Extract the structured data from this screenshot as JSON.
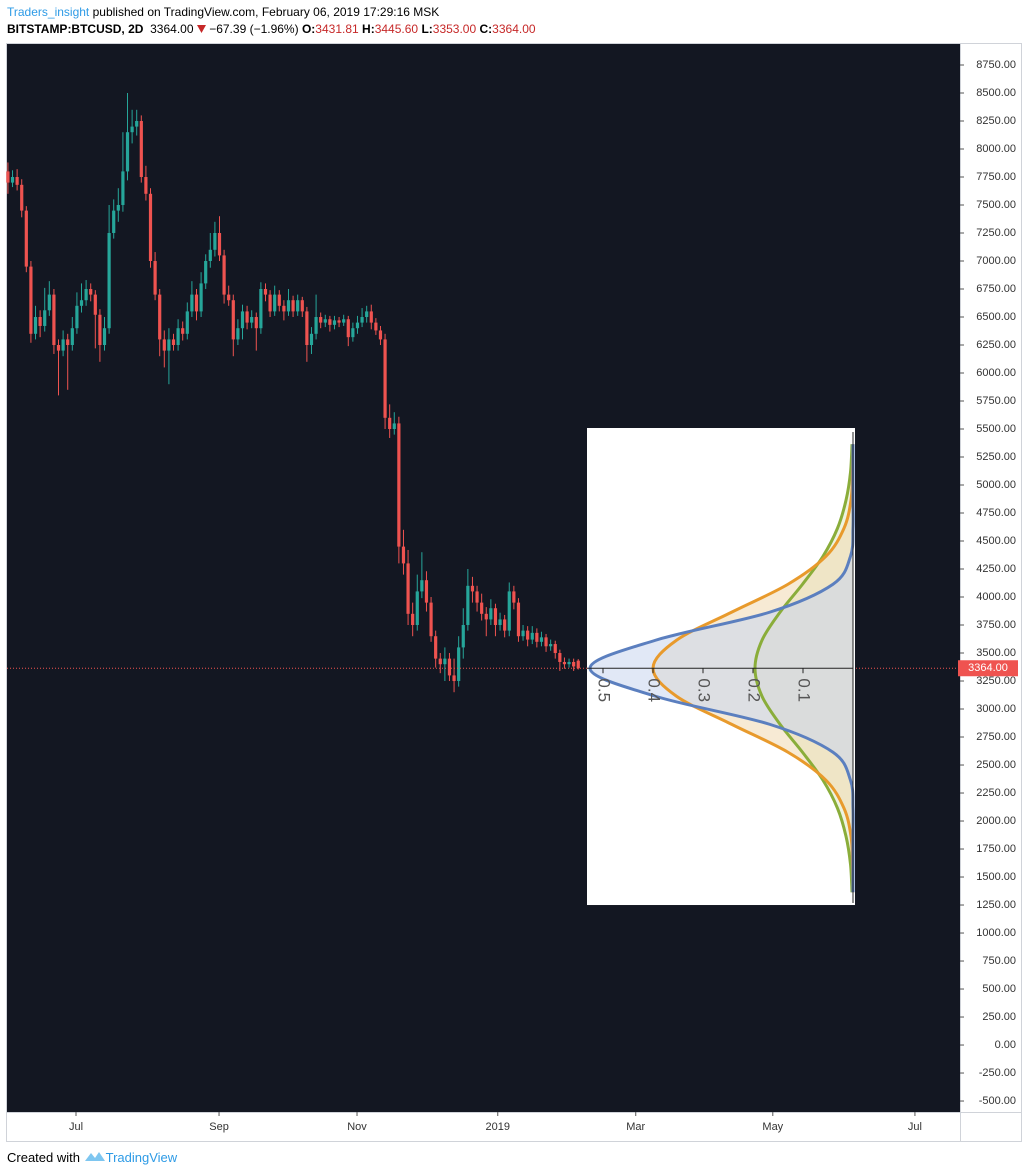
{
  "header": {
    "author": "Traders_insight",
    "published": "published on TradingView.com, February 06, 2019 17:29:16 MSK",
    "symbol": "BITSTAMP:BTCUSD, 2D",
    "last": "3364.00",
    "change": "−67.39 (−1.96%)",
    "open_label": "O:",
    "open": "3431.81",
    "high_label": "H:",
    "high": "3445.60",
    "low_label": "L:",
    "low": "3353.00",
    "close_label": "C:",
    "close": "3364.00"
  },
  "footer": {
    "created": "Created with",
    "brand": "TradingView"
  },
  "chart_data": [
    {
      "type": "candlestick",
      "up_color": "#26a69a",
      "down_color": "#ef5350",
      "xlim": [
        -0.2,
        207
      ],
      "ylim": [
        -598,
        8937.5
      ],
      "xticks": [
        {
          "value": 14.8,
          "label": "Jul"
        },
        {
          "value": 45.9,
          "label": "Sep"
        },
        {
          "value": 75.9,
          "label": "Nov"
        },
        {
          "value": 106.5,
          "label": "2019"
        },
        {
          "value": 136.5,
          "label": "Mar"
        },
        {
          "value": 166.3,
          "label": "May"
        },
        {
          "value": 197.2,
          "label": "Jul"
        }
      ],
      "yticks": [
        {
          "value": 8750,
          "label": "8750.00"
        },
        {
          "value": 8500,
          "label": "8500.00"
        },
        {
          "value": 8250,
          "label": "8250.00"
        },
        {
          "value": 8000,
          "label": "8000.00"
        },
        {
          "value": 7750,
          "label": "7750.00"
        },
        {
          "value": 7500,
          "label": "7500.00"
        },
        {
          "value": 7250,
          "label": "7250.00"
        },
        {
          "value": 7000,
          "label": "7000.00"
        },
        {
          "value": 6750,
          "label": "6750.00"
        },
        {
          "value": 6500,
          "label": "6500.00"
        },
        {
          "value": 6250,
          "label": "6250.00"
        },
        {
          "value": 6000,
          "label": "6000.00"
        },
        {
          "value": 5750,
          "label": "5750.00"
        },
        {
          "value": 5500,
          "label": "5500.00"
        },
        {
          "value": 5250,
          "label": "5250.00"
        },
        {
          "value": 5000,
          "label": "5000.00"
        },
        {
          "value": 4750,
          "label": "4750.00"
        },
        {
          "value": 4500,
          "label": "4500.00"
        },
        {
          "value": 4250,
          "label": "4250.00"
        },
        {
          "value": 4000,
          "label": "4000.00"
        },
        {
          "value": 3750,
          "label": "3750.00"
        },
        {
          "value": 3500,
          "label": "3500.00"
        },
        {
          "value": 3250,
          "label": "3250.00"
        },
        {
          "value": 3000,
          "label": "3000.00"
        },
        {
          "value": 2750,
          "label": "2750.00"
        },
        {
          "value": 2500,
          "label": "2500.00"
        },
        {
          "value": 2250,
          "label": "2250.00"
        },
        {
          "value": 2000,
          "label": "2000.00"
        },
        {
          "value": 1750,
          "label": "1750.00"
        },
        {
          "value": 1500,
          "label": "1500.00"
        },
        {
          "value": 1250,
          "label": "1250.00"
        },
        {
          "value": 1000,
          "label": "1000.00"
        },
        {
          "value": 750,
          "label": "750.00"
        },
        {
          "value": 500,
          "label": "500.00"
        },
        {
          "value": 250,
          "label": "250.00"
        },
        {
          "value": 0,
          "label": "0.00"
        },
        {
          "value": -250,
          "label": "-250.00"
        },
        {
          "value": -500,
          "label": "-500.00"
        }
      ],
      "last_price": {
        "value": 3364,
        "label": "3364.00"
      },
      "open": [
        7800,
        7700,
        7750,
        7680,
        7450,
        6950,
        6350,
        6500,
        6420,
        6560,
        6700,
        6250,
        6200,
        6300,
        6250,
        6400,
        6600,
        6650,
        6750,
        6700,
        6520,
        6250,
        6400,
        7250,
        7450,
        7500,
        7800,
        8150,
        8200,
        8250,
        7750,
        7600,
        7000,
        6700,
        6300,
        6200,
        6300,
        6250,
        6400,
        6350,
        6550,
        6700,
        6550,
        6800,
        7000,
        7100,
        7250,
        7050,
        6700,
        6650,
        6300,
        6400,
        6550,
        6450,
        6500,
        6400,
        6750,
        6700,
        6550,
        6700,
        6600,
        6550,
        6650,
        6550,
        6650,
        6550,
        6250,
        6350,
        6500,
        6450,
        6480,
        6430,
        6470,
        6450,
        6480,
        6320,
        6400,
        6450,
        6500,
        6550,
        6450,
        6380,
        6300,
        5600,
        5500,
        5550,
        4450,
        4300,
        3850,
        3750,
        4050,
        4150,
        3950,
        3650,
        3450,
        3400,
        3450,
        3300,
        3250,
        3550,
        3750,
        4100,
        4050,
        3950,
        3850,
        3800,
        3900,
        3750,
        3800,
        3700,
        4050,
        3950,
        3650,
        3700,
        3620,
        3680,
        3600,
        3640,
        3560,
        3580,
        3500,
        3420,
        3400,
        3420,
        3431.81
      ],
      "high": [
        7880,
        7810,
        7820,
        7730,
        7490,
        7000,
        6600,
        6560,
        6760,
        6820,
        6750,
        6300,
        6380,
        6350,
        6500,
        6720,
        6800,
        6830,
        6800,
        6740,
        6570,
        6500,
        7500,
        7550,
        7650,
        8150,
        8500,
        8350,
        8350,
        8300,
        7850,
        7650,
        7080,
        6750,
        6380,
        6400,
        6350,
        6480,
        6460,
        6630,
        6820,
        6750,
        6900,
        7060,
        7250,
        7350,
        7400,
        7100,
        6780,
        6700,
        6480,
        6610,
        6600,
        6560,
        6540,
        6810,
        6800,
        6740,
        6780,
        6740,
        6650,
        6750,
        6690,
        6700,
        6680,
        6590,
        6410,
        6700,
        6540,
        6520,
        6510,
        6510,
        6500,
        6520,
        6510,
        6450,
        6510,
        6580,
        6600,
        6610,
        6490,
        6420,
        6350,
        5720,
        5650,
        5610,
        4600,
        4420,
        3950,
        4200,
        4400,
        4230,
        4000,
        3700,
        3500,
        3550,
        3500,
        3450,
        3650,
        3900,
        4250,
        4180,
        4100,
        4030,
        3910,
        3980,
        3940,
        3860,
        3840,
        4130,
        4100,
        3990,
        3750,
        3740,
        3740,
        3720,
        3690,
        3670,
        3620,
        3610,
        3530,
        3460,
        3450,
        3450,
        3445.6
      ],
      "low": [
        7600,
        7660,
        7630,
        7390,
        6900,
        6270,
        6300,
        6320,
        6370,
        6510,
        6170,
        5800,
        6150,
        5850,
        6200,
        6350,
        6540,
        6600,
        6640,
        6220,
        6100,
        6200,
        6350,
        7200,
        7350,
        7440,
        7720,
        8050,
        8120,
        7700,
        7540,
        6940,
        6650,
        6150,
        6050,
        5900,
        6200,
        6200,
        6290,
        6300,
        6500,
        6470,
        6500,
        6750,
        6940,
        7040,
        7000,
        6620,
        6600,
        6150,
        6250,
        6300,
        6390,
        6400,
        6200,
        6350,
        6640,
        6500,
        6510,
        6550,
        6470,
        6510,
        6500,
        6510,
        6500,
        6100,
        6170,
        6300,
        6400,
        6410,
        6370,
        6390,
        6410,
        6420,
        6240,
        6280,
        6350,
        6410,
        6450,
        6390,
        6340,
        6250,
        5500,
        5420,
        5450,
        4300,
        4200,
        3750,
        3650,
        3700,
        3990,
        3870,
        3600,
        3370,
        3320,
        3250,
        3250,
        3150,
        3200,
        3450,
        3700,
        3950,
        3870,
        3790,
        3650,
        3750,
        3650,
        3700,
        3640,
        3650,
        3890,
        3600,
        3610,
        3560,
        3580,
        3550,
        3560,
        3510,
        3520,
        3450,
        3340,
        3360,
        3370,
        3340,
        3353
      ],
      "close": [
        7700,
        7750,
        7680,
        7450,
        6950,
        6350,
        6500,
        6420,
        6560,
        6700,
        6250,
        6200,
        6300,
        6250,
        6400,
        6600,
        6650,
        6750,
        6700,
        6520,
        6250,
        6400,
        7250,
        7450,
        7500,
        7800,
        8150,
        8200,
        8250,
        7750,
        7600,
        7000,
        6700,
        6300,
        6200,
        6300,
        6250,
        6400,
        6350,
        6550,
        6700,
        6550,
        6800,
        7000,
        7100,
        7250,
        7050,
        6700,
        6650,
        6300,
        6400,
        6550,
        6450,
        6500,
        6400,
        6750,
        6700,
        6550,
        6700,
        6600,
        6550,
        6650,
        6550,
        6650,
        6550,
        6250,
        6350,
        6500,
        6450,
        6480,
        6430,
        6470,
        6450,
        6480,
        6320,
        6400,
        6450,
        6500,
        6550,
        6450,
        6380,
        6300,
        5600,
        5500,
        5550,
        4450,
        4300,
        3850,
        3750,
        4050,
        4150,
        3950,
        3650,
        3450,
        3400,
        3450,
        3300,
        3250,
        3550,
        3750,
        4100,
        4050,
        3950,
        3850,
        3800,
        3900,
        3750,
        3800,
        3700,
        4050,
        3950,
        3650,
        3700,
        3620,
        3680,
        3600,
        3640,
        3560,
        3580,
        3500,
        3420,
        3400,
        3420,
        3380,
        3364
      ]
    },
    {
      "type": "area",
      "x": [
        1364,
        1614,
        1864,
        2114,
        2364,
        2614,
        2864,
        3114,
        3364,
        3614,
        3864,
        4114,
        4364,
        4614,
        4864,
        5114,
        5364
      ],
      "xlim": [
        1250,
        5509
      ],
      "ylim": [
        -0.004,
        0.532
      ],
      "yticks": [
        0.5,
        0.4,
        0.3,
        0.2,
        0.1
      ],
      "series": [
        {
          "color": "#8aad3a",
          "fill": "#dfe9c4",
          "values": [
            0.002,
            0.005,
            0.014,
            0.031,
            0.06,
            0.101,
            0.146,
            0.182,
            0.196,
            0.182,
            0.146,
            0.101,
            0.06,
            0.031,
            0.014,
            0.005,
            0.002
          ]
        },
        {
          "color": "#e89a2c",
          "fill": "#f0d9b0",
          "values": [
            0,
            0.001,
            0.004,
            0.018,
            0.054,
            0.13,
            0.243,
            0.353,
            0.4,
            0.353,
            0.243,
            0.13,
            0.054,
            0.018,
            0.004,
            0.001,
            0
          ]
        },
        {
          "color": "#5b7fbf",
          "fill": "#c9d6ee",
          "values": [
            0,
            0,
            0,
            0,
            0.005,
            0.04,
            0.167,
            0.395,
            0.526,
            0.395,
            0.167,
            0.04,
            0.005,
            0,
            0,
            0,
            0
          ]
        }
      ]
    }
  ]
}
